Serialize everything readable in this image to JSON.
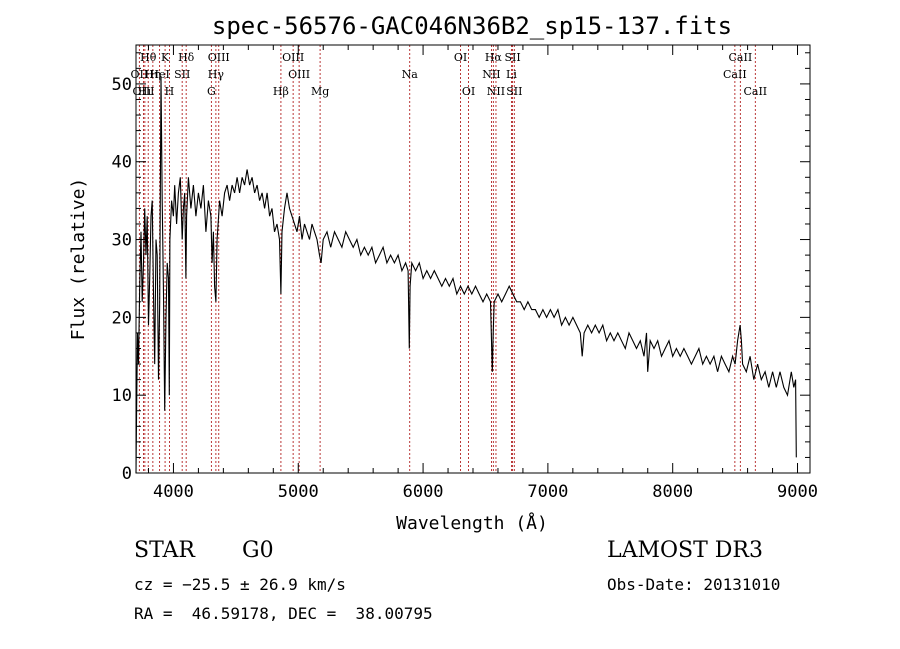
{
  "chart_data": {
    "type": "line",
    "title": "spec-56576-GAC046N36B2_sp15-137.fits",
    "xlabel": "Wavelength (Å)",
    "ylabel": "Flux (relative)",
    "xlim": [
      3700,
      9100
    ],
    "ylim": [
      0,
      55
    ],
    "xticks": [
      4000,
      5000,
      6000,
      7000,
      8000,
      9000
    ],
    "yticks": [
      0,
      10,
      20,
      30,
      40,
      50
    ],
    "series": [
      {
        "name": "spectrum",
        "color": "#000000",
        "points": [
          [
            3700,
            0
          ],
          [
            3705,
            8
          ],
          [
            3712,
            18
          ],
          [
            3720,
            14
          ],
          [
            3730,
            24
          ],
          [
            3740,
            31
          ],
          [
            3750,
            22
          ],
          [
            3760,
            27
          ],
          [
            3770,
            34
          ],
          [
            3780,
            28
          ],
          [
            3790,
            33
          ],
          [
            3800,
            19
          ],
          [
            3810,
            25
          ],
          [
            3820,
            33
          ],
          [
            3830,
            35
          ],
          [
            3840,
            23
          ],
          [
            3850,
            14
          ],
          [
            3860,
            30
          ],
          [
            3870,
            28
          ],
          [
            3880,
            12
          ],
          [
            3890,
            22
          ],
          [
            3900,
            51
          ],
          [
            3910,
            35
          ],
          [
            3920,
            23
          ],
          [
            3930,
            8
          ],
          [
            3940,
            20
          ],
          [
            3950,
            27
          ],
          [
            3960,
            25
          ],
          [
            3967,
            10
          ],
          [
            3972,
            30
          ],
          [
            3985,
            35
          ],
          [
            4000,
            33
          ],
          [
            4010,
            37
          ],
          [
            4025,
            32
          ],
          [
            4040,
            36
          ],
          [
            4055,
            38
          ],
          [
            4070,
            30
          ],
          [
            4080,
            34
          ],
          [
            4090,
            36
          ],
          [
            4100,
            25
          ],
          [
            4105,
            33
          ],
          [
            4120,
            38
          ],
          [
            4140,
            34
          ],
          [
            4160,
            37
          ],
          [
            4180,
            33
          ],
          [
            4200,
            36
          ],
          [
            4220,
            34
          ],
          [
            4240,
            37
          ],
          [
            4260,
            31
          ],
          [
            4280,
            35
          ],
          [
            4300,
            33
          ],
          [
            4310,
            27
          ],
          [
            4320,
            31
          ],
          [
            4330,
            24
          ],
          [
            4340,
            22
          ],
          [
            4350,
            30
          ],
          [
            4370,
            35
          ],
          [
            4390,
            33
          ],
          [
            4410,
            36
          ],
          [
            4430,
            37
          ],
          [
            4450,
            35
          ],
          [
            4470,
            37
          ],
          [
            4490,
            36
          ],
          [
            4510,
            38
          ],
          [
            4530,
            36
          ],
          [
            4550,
            38
          ],
          [
            4570,
            37
          ],
          [
            4590,
            39
          ],
          [
            4610,
            37
          ],
          [
            4630,
            38
          ],
          [
            4650,
            36
          ],
          [
            4670,
            37
          ],
          [
            4690,
            35
          ],
          [
            4710,
            36
          ],
          [
            4730,
            34
          ],
          [
            4750,
            36
          ],
          [
            4770,
            33
          ],
          [
            4790,
            34
          ],
          [
            4810,
            31
          ],
          [
            4830,
            32
          ],
          [
            4850,
            30
          ],
          [
            4861,
            23
          ],
          [
            4870,
            31
          ],
          [
            4890,
            34
          ],
          [
            4910,
            36
          ],
          [
            4930,
            34
          ],
          [
            4950,
            33
          ],
          [
            4970,
            32
          ],
          [
            4990,
            31
          ],
          [
            5010,
            33
          ],
          [
            5030,
            30
          ],
          [
            5050,
            32
          ],
          [
            5070,
            31
          ],
          [
            5090,
            30
          ],
          [
            5110,
            32
          ],
          [
            5130,
            31
          ],
          [
            5150,
            30
          ],
          [
            5170,
            28
          ],
          [
            5183,
            27
          ],
          [
            5200,
            30
          ],
          [
            5230,
            31
          ],
          [
            5260,
            29
          ],
          [
            5290,
            31
          ],
          [
            5320,
            30
          ],
          [
            5350,
            29
          ],
          [
            5380,
            31
          ],
          [
            5410,
            30
          ],
          [
            5440,
            29
          ],
          [
            5470,
            30
          ],
          [
            5500,
            28
          ],
          [
            5530,
            29
          ],
          [
            5560,
            28
          ],
          [
            5590,
            29
          ],
          [
            5620,
            27
          ],
          [
            5650,
            28
          ],
          [
            5680,
            29
          ],
          [
            5710,
            27
          ],
          [
            5740,
            28
          ],
          [
            5770,
            27
          ],
          [
            5800,
            28
          ],
          [
            5830,
            26
          ],
          [
            5860,
            27
          ],
          [
            5880,
            26
          ],
          [
            5890,
            16
          ],
          [
            5896,
            24
          ],
          [
            5910,
            27
          ],
          [
            5940,
            26
          ],
          [
            5970,
            27
          ],
          [
            6000,
            25
          ],
          [
            6030,
            26
          ],
          [
            6060,
            25
          ],
          [
            6090,
            26
          ],
          [
            6120,
            25
          ],
          [
            6150,
            24
          ],
          [
            6180,
            25
          ],
          [
            6210,
            24
          ],
          [
            6240,
            25
          ],
          [
            6270,
            23
          ],
          [
            6300,
            24
          ],
          [
            6330,
            23
          ],
          [
            6360,
            24
          ],
          [
            6390,
            23
          ],
          [
            6420,
            24
          ],
          [
            6450,
            23
          ],
          [
            6480,
            22
          ],
          [
            6510,
            23
          ],
          [
            6540,
            22
          ],
          [
            6555,
            13
          ],
          [
            6562,
            18
          ],
          [
            6570,
            22
          ],
          [
            6600,
            23
          ],
          [
            6630,
            22
          ],
          [
            6660,
            23
          ],
          [
            6690,
            24
          ],
          [
            6720,
            23
          ],
          [
            6750,
            22
          ],
          [
            6780,
            22
          ],
          [
            6810,
            21
          ],
          [
            6840,
            22
          ],
          [
            6870,
            21
          ],
          [
            6900,
            21
          ],
          [
            6930,
            20
          ],
          [
            6960,
            21
          ],
          [
            6990,
            20
          ],
          [
            7020,
            21
          ],
          [
            7050,
            20
          ],
          [
            7080,
            21
          ],
          [
            7110,
            19
          ],
          [
            7140,
            20
          ],
          [
            7170,
            19
          ],
          [
            7200,
            20
          ],
          [
            7230,
            19
          ],
          [
            7260,
            18
          ],
          [
            7275,
            15
          ],
          [
            7290,
            18
          ],
          [
            7320,
            19
          ],
          [
            7350,
            18
          ],
          [
            7380,
            19
          ],
          [
            7410,
            18
          ],
          [
            7440,
            19
          ],
          [
            7470,
            17
          ],
          [
            7500,
            18
          ],
          [
            7530,
            17
          ],
          [
            7560,
            18
          ],
          [
            7590,
            17
          ],
          [
            7620,
            16
          ],
          [
            7650,
            18
          ],
          [
            7680,
            17
          ],
          [
            7710,
            16
          ],
          [
            7740,
            17
          ],
          [
            7770,
            15
          ],
          [
            7790,
            18
          ],
          [
            7800,
            13
          ],
          [
            7820,
            17
          ],
          [
            7850,
            16
          ],
          [
            7880,
            17
          ],
          [
            7910,
            15
          ],
          [
            7940,
            16
          ],
          [
            7970,
            17
          ],
          [
            8000,
            15
          ],
          [
            8030,
            16
          ],
          [
            8060,
            15
          ],
          [
            8090,
            16
          ],
          [
            8120,
            15
          ],
          [
            8150,
            14
          ],
          [
            8180,
            15
          ],
          [
            8210,
            16
          ],
          [
            8240,
            14
          ],
          [
            8270,
            15
          ],
          [
            8300,
            14
          ],
          [
            8330,
            15
          ],
          [
            8360,
            13
          ],
          [
            8390,
            15
          ],
          [
            8420,
            14
          ],
          [
            8450,
            13
          ],
          [
            8480,
            15
          ],
          [
            8500,
            14
          ],
          [
            8520,
            17
          ],
          [
            8540,
            19
          ],
          [
            8550,
            17
          ],
          [
            8560,
            14
          ],
          [
            8590,
            13
          ],
          [
            8620,
            15
          ],
          [
            8650,
            12
          ],
          [
            8680,
            14
          ],
          [
            8710,
            12
          ],
          [
            8740,
            13
          ],
          [
            8770,
            11
          ],
          [
            8800,
            13
          ],
          [
            8830,
            11
          ],
          [
            8860,
            13
          ],
          [
            8890,
            11
          ],
          [
            8920,
            10
          ],
          [
            8950,
            13
          ],
          [
            8970,
            11
          ],
          [
            8985,
            12
          ],
          [
            8990,
            2
          ]
        ]
      }
    ],
    "annotations": [
      {
        "label": "Hθ",
        "x": 3798,
        "row": 0
      },
      {
        "label": "OII",
        "x": 3727,
        "row": 1
      },
      {
        "label": "Hη",
        "x": 3835,
        "row": 1
      },
      {
        "label": "OIII",
        "x": 3760,
        "row": 2
      },
      {
        "label": "Hι",
        "x": 3771,
        "row": 2
      },
      {
        "label": "K",
        "x": 3933,
        "row": 0
      },
      {
        "label": "HeI",
        "x": 3889,
        "row": 1
      },
      {
        "label": "SII",
        "x": 4070,
        "row": 1
      },
      {
        "label": "H",
        "x": 3968,
        "row": 2
      },
      {
        "label": "Hδ",
        "x": 4102,
        "row": 0
      },
      {
        "label": "OIII",
        "x": 4363,
        "row": 0
      },
      {
        "label": "Hγ",
        "x": 4340,
        "row": 1
      },
      {
        "label": "G",
        "x": 4304,
        "row": 2
      },
      {
        "label": "OIII",
        "x": 4959,
        "row": 0
      },
      {
        "label": "OIII",
        "x": 5007,
        "row": 1
      },
      {
        "label": "Hβ",
        "x": 4861,
        "row": 2
      },
      {
        "label": "Mg",
        "x": 5175,
        "row": 2
      },
      {
        "label": "Na",
        "x": 5893,
        "row": 1
      },
      {
        "label": "OI",
        "x": 6300,
        "row": 0
      },
      {
        "label": "OI",
        "x": 6364,
        "row": 2
      },
      {
        "label": "Hα",
        "x": 6563,
        "row": 0
      },
      {
        "label": "SII",
        "x": 6717,
        "row": 0
      },
      {
        "label": "NII",
        "x": 6548,
        "row": 1
      },
      {
        "label": "Li",
        "x": 6708,
        "row": 1
      },
      {
        "label": "NII",
        "x": 6584,
        "row": 2
      },
      {
        "label": "SII",
        "x": 6731,
        "row": 2
      },
      {
        "label": "CaII",
        "x": 8542,
        "row": 0
      },
      {
        "label": "CaII",
        "x": 8498,
        "row": 1
      },
      {
        "label": "CaII",
        "x": 8662,
        "row": 2
      }
    ],
    "line_color": "#b22222"
  },
  "info": {
    "class_label": "STAR",
    "subclass": "G0",
    "survey": "LAMOST DR3",
    "cz": "cz = −25.5 ± 26.9 km/s",
    "obs_date": "Obs-Date: 20131010",
    "coords": "RA =  46.59178, DEC =  38.00795"
  }
}
